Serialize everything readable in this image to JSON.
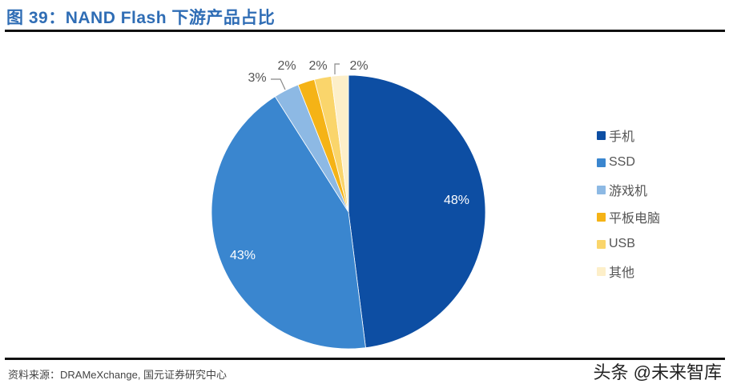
{
  "header": {
    "title": "图 39：NAND Flash 下游产品占比"
  },
  "footer": {
    "source": "资料来源：DRAMeXchange, 国元证券研究中心",
    "watermark": "头条 @未来智库"
  },
  "chart_data": {
    "type": "pie",
    "title": "NAND Flash 下游产品占比",
    "categories": [
      "手机",
      "SSD",
      "游戏机",
      "平板电脑",
      "USB",
      "其他"
    ],
    "values": [
      48,
      43,
      3,
      2,
      2,
      2
    ],
    "labels": [
      "48%",
      "43%",
      "3%",
      "2%",
      "2%",
      "2%"
    ],
    "colors": [
      "#0d4ea3",
      "#3a86cf",
      "#8db9e4",
      "#f5b316",
      "#fad56b",
      "#fdefc9"
    ],
    "start_angle": "12 o'clock, clockwise",
    "legend_position": "right"
  },
  "legend": {
    "items": [
      {
        "label": "手机",
        "color": "#0d4ea3"
      },
      {
        "label": "SSD",
        "color": "#3a86cf"
      },
      {
        "label": "游戏机",
        "color": "#8db9e4"
      },
      {
        "label": "平板电脑",
        "color": "#f5b316"
      },
      {
        "label": "USB",
        "color": "#fad56b"
      },
      {
        "label": "其他",
        "color": "#fdefc9"
      }
    ]
  }
}
